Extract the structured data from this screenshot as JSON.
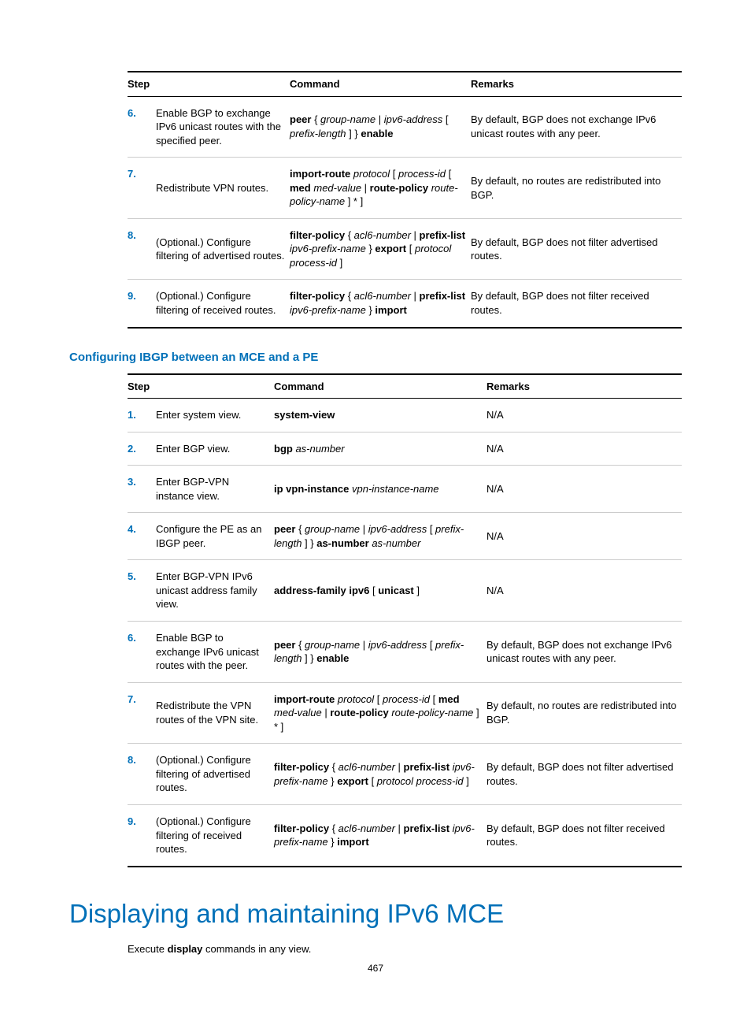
{
  "colors": {
    "accent": "#0070b8",
    "rule_light": "#cccccc",
    "rule_dark": "#000000",
    "text": "#000000",
    "background": "#ffffff"
  },
  "typography": {
    "body_pt": 13,
    "h3_pt": 15,
    "h1_pt": 33,
    "font_family": "Arial"
  },
  "table1": {
    "headers": {
      "step": "Step",
      "command": "Command",
      "remarks": "Remarks"
    },
    "rows": [
      {
        "n": "6.",
        "step": "Enable BGP to exchange IPv6 unicast routes with the specified peer.",
        "cmd": "<span class='b'>peer</span> { <span class='i'>group-name</span> | <span class='i'>ipv6-address</span> [ <span class='i'>prefix-length</span> ] } <span class='b'>enable</span>",
        "rem": "By default, BGP does not exchange IPv6 unicast routes with any peer."
      },
      {
        "n": "7.",
        "step": "Redistribute VPN routes.",
        "cmd": "<span class='b'>import-route</span> <span class='i'>protocol</span> [ <span class='i'>process-id</span> [ <span class='b'>med</span> <span class='i'>med-value</span> | <span class='b'>route-policy</span> <span class='i'>route-policy-name</span> ] * ]",
        "rem": "By default, no routes are redistributed into BGP."
      },
      {
        "n": "8.",
        "step": "(Optional.) Configure filtering of advertised routes.",
        "cmd": "<span class='b'>filter-policy</span> { <span class='i'>acl6-number</span> | <span class='b'>prefix-list</span> <span class='i'>ipv6-prefix-name</span> } <span class='b'>export</span> [ <span class='i'>protocol process-id</span> ]",
        "rem": "By default, BGP does not filter advertised routes."
      },
      {
        "n": "9.",
        "step": "(Optional.) Configure filtering of received routes.",
        "cmd": "<span class='b'>filter-policy</span> { <span class='i'>acl6-number</span> | <span class='b'>prefix-list</span> <span class='i'>ipv6-prefix-name</span> } <span class='b'>import</span>",
        "rem": "By default, BGP does not filter received routes."
      }
    ]
  },
  "h3_1": "Configuring IBGP between an MCE and a PE",
  "table2": {
    "headers": {
      "step": "Step",
      "command": "Command",
      "remarks": "Remarks"
    },
    "rows": [
      {
        "n": "1.",
        "step": "Enter system view.",
        "cmd": "<span class='b'>system-view</span>",
        "rem": "N/A"
      },
      {
        "n": "2.",
        "step": "Enter BGP view.",
        "cmd": "<span class='b'>bgp</span> <span class='i'>as-number</span>",
        "rem": "N/A"
      },
      {
        "n": "3.",
        "step": "Enter BGP-VPN instance view.",
        "cmd": "<span class='b'>ip vpn-instance</span> <span class='i'>vpn-instance-name</span>",
        "rem": "N/A"
      },
      {
        "n": "4.",
        "step": "Configure the PE as an IBGP peer.",
        "cmd": "<span class='b'>peer</span> { <span class='i'>group-name</span> | <span class='i'>ipv6-address</span> [ <span class='i'>prefix-length</span> ] } <span class='b'>as-number</span> <span class='i'>as-number</span>",
        "rem": "N/A"
      },
      {
        "n": "5.",
        "step": "Enter BGP-VPN IPv6 unicast address family view.",
        "cmd": "<span class='b'>address-family ipv6</span> [ <span class='b'>unicast</span> ]",
        "rem": "N/A"
      },
      {
        "n": "6.",
        "step": "Enable BGP to exchange IPv6 unicast routes with the peer.",
        "cmd": "<span class='b'>peer</span> { <span class='i'>group-name</span> | <span class='i'>ipv6-address</span> [ <span class='i'>prefix-length</span> ] } <span class='b'>enable</span>",
        "rem": "By default, BGP does not exchange IPv6 unicast routes with any peer."
      },
      {
        "n": "7.",
        "step": "Redistribute the VPN routes of the VPN site.",
        "cmd": "<span class='b'>import-route</span> <span class='i'>protocol</span> [ <span class='i'>process-id</span> [ <span class='b'>med</span> <span class='i'>med-value</span> | <span class='b'>route-policy</span> <span class='i'>route-policy-name</span> ] * ]",
        "rem": "By default, no routes are redistributed into BGP."
      },
      {
        "n": "8.",
        "step": "(Optional.) Configure filtering of advertised routes.",
        "cmd": "<span class='b'>filter-policy</span> { <span class='i'>acl6-number</span> | <span class='b'>prefix-list</span> <span class='i'>ipv6-prefix-name</span> } <span class='b'>export</span> [ <span class='i'>protocol process-id</span> ]",
        "rem": "By default, BGP does not filter advertised routes."
      },
      {
        "n": "9.",
        "step": "(Optional.) Configure filtering of received routes.",
        "cmd": "<span class='b'>filter-policy</span> { <span class='i'>acl6-number</span> | <span class='b'>prefix-list</span> <span class='i'>ipv6-prefix-name</span> } <span class='b'>import</span>",
        "rem": "By default, BGP does not filter received routes."
      }
    ]
  },
  "h1_1": "Displaying and maintaining IPv6 MCE",
  "intro": "Execute <span class='b'>display</span> commands in any view.",
  "page_number": "467"
}
